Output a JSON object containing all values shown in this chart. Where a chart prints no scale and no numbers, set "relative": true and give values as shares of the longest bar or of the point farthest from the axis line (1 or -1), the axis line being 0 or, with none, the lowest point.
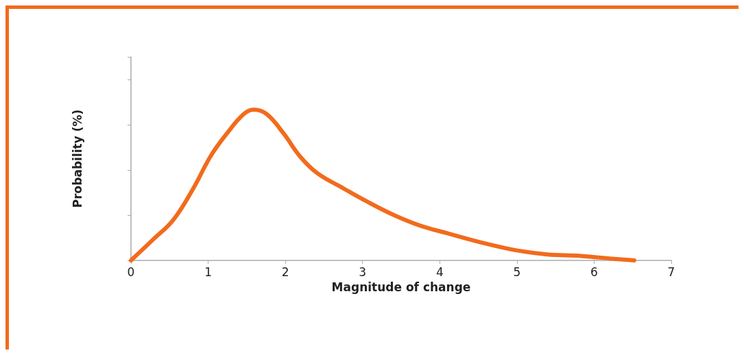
{
  "chart_data": {
    "type": "line",
    "xlabel": "Magnitude of change",
    "ylabel": "Probability (%)",
    "relative": true,
    "xlim": [
      0,
      7
    ],
    "xticks": [
      0,
      1,
      2,
      3,
      4,
      5,
      6,
      7
    ],
    "grid": false,
    "marker": "none",
    "line_style": "solid",
    "series": [
      {
        "color": "#f26b1d",
        "x": [
          0,
          0.29,
          0.55,
          0.81,
          1.03,
          1.24,
          1.46,
          1.59,
          1.76,
          1.98,
          2.19,
          2.41,
          2.71,
          3.06,
          3.41,
          3.75,
          4.1,
          4.53,
          4.96,
          5.39,
          5.83,
          6.26,
          6.52
        ],
        "values": [
          0,
          0.14,
          0.27,
          0.48,
          0.69,
          0.84,
          0.97,
          1,
          0.97,
          0.84,
          0.69,
          0.58,
          0.49,
          0.39,
          0.3,
          0.23,
          0.18,
          0.12,
          0.07,
          0.04,
          0.03,
          0.01,
          0
        ]
      }
    ]
  }
}
